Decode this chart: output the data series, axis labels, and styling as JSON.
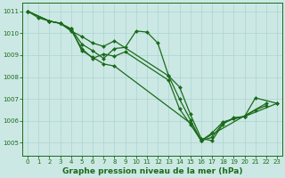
{
  "title": "Graphe pression niveau de la mer (hPa)",
  "background_color": "#cce8e4",
  "grid_color": "#aad4d0",
  "line_color": "#1a6b1a",
  "xlim": [
    -0.5,
    23.5
  ],
  "ylim": [
    1004.4,
    1011.4
  ],
  "yticks": [
    1005,
    1006,
    1007,
    1008,
    1009,
    1010,
    1011
  ],
  "xticks": [
    0,
    1,
    2,
    3,
    4,
    5,
    6,
    7,
    8,
    9,
    10,
    11,
    12,
    13,
    14,
    15,
    16,
    17,
    18,
    19,
    20,
    21,
    22,
    23
  ],
  "series": [
    {
      "x": [
        0,
        1,
        2,
        3,
        4,
        5,
        6,
        7,
        8,
        9,
        10,
        11,
        12,
        13,
        14,
        15,
        16,
        17,
        18,
        19,
        20,
        21,
        22
      ],
      "y": [
        1011.0,
        1010.7,
        1010.55,
        1010.45,
        1010.2,
        1009.5,
        1009.2,
        1008.85,
        1009.3,
        1009.35,
        1010.1,
        1010.05,
        1009.55,
        1008.05,
        1007.55,
        1006.3,
        1005.2,
        1005.1,
        1005.85,
        1006.15,
        1006.2,
        1006.5,
        1006.7
      ]
    },
    {
      "x": [
        0,
        2,
        3,
        4,
        5,
        6,
        7,
        8,
        9,
        13,
        14,
        15,
        16,
        22
      ],
      "y": [
        1011.0,
        1010.55,
        1010.45,
        1010.15,
        1009.3,
        1008.85,
        1009.05,
        1008.95,
        1009.15,
        1007.85,
        1006.55,
        1005.85,
        1005.1,
        1006.8
      ]
    },
    {
      "x": [
        0,
        2,
        3,
        4,
        5,
        6,
        7,
        8,
        13,
        14,
        15,
        16,
        17,
        18,
        19,
        20,
        21,
        23
      ],
      "y": [
        1011.0,
        1010.55,
        1010.45,
        1010.1,
        1009.85,
        1009.55,
        1009.4,
        1009.65,
        1008.05,
        1007.0,
        1006.05,
        1005.1,
        1005.45,
        1005.95,
        1006.1,
        1006.2,
        1007.05,
        1006.8
      ]
    },
    {
      "x": [
        0,
        2,
        3,
        4,
        5,
        6,
        7,
        8,
        15,
        16,
        17,
        18,
        19,
        20,
        23
      ],
      "y": [
        1011.0,
        1010.55,
        1010.45,
        1010.2,
        1009.2,
        1008.9,
        1008.6,
        1008.5,
        1005.9,
        1005.1,
        1005.25,
        1005.9,
        1006.1,
        1006.2,
        1006.8
      ]
    }
  ],
  "tick_fontsize": 5.0,
  "xlabel_fontsize": 6.5,
  "linewidth": 0.9,
  "markersize": 2.0
}
